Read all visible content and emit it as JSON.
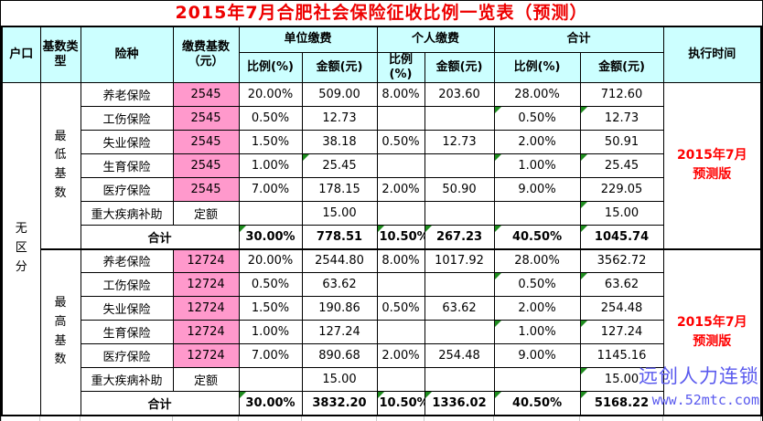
{
  "title": "2015年7月合肥社会保险征收比例一览表（预测）",
  "colors": {
    "header_bg": "#CCFFFF",
    "base_highlight_pink": "#FF99CC",
    "title_red": "#EE0000",
    "exec_time_red": "#FF0000",
    "watermark_blue": "#5A5AEE",
    "note_triangle_green": "#1E8C1E"
  },
  "header": {
    "hukou": "户口",
    "base_type": "基数类型",
    "insurance": "险种",
    "base": "缴费基数（元）",
    "unit_group": "单位缴费",
    "personal_group": "个人缴费",
    "total_group": "合计",
    "ratio": "比例(%)",
    "amount": "金额(元)",
    "exec_time": "执行时间"
  },
  "hukou_value": "无区分",
  "blocks": [
    {
      "base_type": "最低基数",
      "exec_time": [
        "2015年7月",
        "预测版"
      ],
      "rows": [
        {
          "name": "养老保险",
          "base": "2545",
          "pink": true,
          "u_ratio": "20.00%",
          "u_amt": "509.00",
          "p_ratio": "8.00%",
          "p_amt": "203.60",
          "t_ratio": "28.00%",
          "t_amt": "712.60",
          "tri": []
        },
        {
          "name": "工伤保险",
          "base": "2545",
          "pink": true,
          "u_ratio": "0.50%",
          "u_amt": "12.73",
          "p_ratio": "",
          "p_amt": "",
          "t_ratio": "0.50%",
          "t_amt": "12.73",
          "tri": [
            "t_ratio",
            "t_amt"
          ]
        },
        {
          "name": "失业保险",
          "base": "2545",
          "pink": true,
          "u_ratio": "1.50%",
          "u_amt": "38.18",
          "p_ratio": "0.50%",
          "p_amt": "12.73",
          "t_ratio": "2.00%",
          "t_amt": "50.91",
          "tri": []
        },
        {
          "name": "生育保险",
          "base": "2545",
          "pink": true,
          "u_ratio": "1.00%",
          "u_amt": "25.45",
          "p_ratio": "",
          "p_amt": "",
          "t_ratio": "1.00%",
          "t_amt": "25.45",
          "tri": [
            "u_amt",
            "t_ratio",
            "t_amt"
          ]
        },
        {
          "name": "医疗保险",
          "base": "2545",
          "pink": true,
          "u_ratio": "7.00%",
          "u_amt": "178.15",
          "p_ratio": "2.00%",
          "p_amt": "50.90",
          "t_ratio": "9.00%",
          "t_amt": "229.05",
          "tri": []
        },
        {
          "name": "重大疾病补助",
          "base": "定额",
          "pink": false,
          "u_ratio": "",
          "u_amt": "15.00",
          "p_ratio": "",
          "p_amt": "",
          "t_ratio": "",
          "t_amt": "15.00",
          "tri": [
            "t_amt"
          ]
        }
      ],
      "total": {
        "label": "合计",
        "u_ratio": "30.00%",
        "u_amt": "778.51",
        "p_ratio": "10.50%",
        "p_amt": "267.23",
        "t_ratio": "40.50%",
        "t_amt": "1045.74",
        "tri": [
          "u_ratio",
          "p_ratio",
          "p_amt",
          "t_ratio",
          "t_amt"
        ]
      }
    },
    {
      "base_type": "最高基数",
      "exec_time": [
        "2015年7月",
        "预测版"
      ],
      "rows": [
        {
          "name": "养老保险",
          "base": "12724",
          "pink": true,
          "u_ratio": "20.00%",
          "u_amt": "2544.80",
          "p_ratio": "8.00%",
          "p_amt": "1017.92",
          "t_ratio": "28.00%",
          "t_amt": "3562.72",
          "tri": []
        },
        {
          "name": "工伤保险",
          "base": "12724",
          "pink": true,
          "u_ratio": "0.50%",
          "u_amt": "63.62",
          "p_ratio": "",
          "p_amt": "",
          "t_ratio": "0.50%",
          "t_amt": "63.62",
          "tri": [
            "t_ratio",
            "t_amt"
          ]
        },
        {
          "name": "失业保险",
          "base": "12724",
          "pink": true,
          "u_ratio": "1.50%",
          "u_amt": "190.86",
          "p_ratio": "0.50%",
          "p_amt": "63.62",
          "t_ratio": "2.00%",
          "t_amt": "254.48",
          "tri": []
        },
        {
          "name": "生育保险",
          "base": "12724",
          "pink": true,
          "u_ratio": "1.00%",
          "u_amt": "127.24",
          "p_ratio": "",
          "p_amt": "",
          "t_ratio": "1.00%",
          "t_amt": "127.24",
          "tri": [
            "t_ratio",
            "t_amt"
          ]
        },
        {
          "name": "医疗保险",
          "base": "12724",
          "pink": true,
          "u_ratio": "7.00%",
          "u_amt": "890.68",
          "p_ratio": "2.00%",
          "p_amt": "254.48",
          "t_ratio": "9.00%",
          "t_amt": "1145.16",
          "tri": []
        },
        {
          "name": "重大疾病补助",
          "base": "定额",
          "pink": false,
          "u_ratio": "",
          "u_amt": "15.00",
          "p_ratio": "",
          "p_amt": "",
          "t_ratio": "",
          "t_amt": "15.00",
          "tri": [
            "t_amt"
          ]
        }
      ],
      "total": {
        "label": "合计",
        "u_ratio": "30.00%",
        "u_amt": "3832.20",
        "p_ratio": "10.50%",
        "p_amt": "1336.02",
        "t_ratio": "40.50%",
        "t_amt": "5168.22",
        "tri": [
          "u_ratio",
          "p_ratio",
          "p_amt",
          "t_ratio",
          "t_amt"
        ]
      }
    }
  ],
  "watermark": {
    "line1": "远创人力连锁",
    "line2": "www.52mtc.com"
  }
}
